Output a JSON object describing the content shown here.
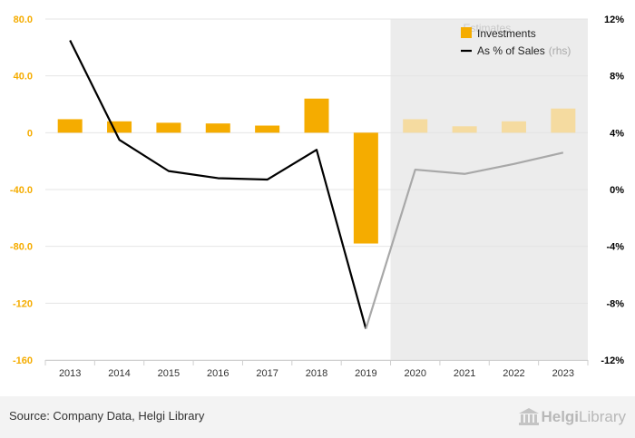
{
  "chart_data": {
    "type": "bar+line",
    "categories": [
      "2013",
      "2014",
      "2015",
      "2016",
      "2017",
      "2018",
      "2019",
      "2020",
      "2021",
      "2022",
      "2023"
    ],
    "series": [
      {
        "name": "Investments",
        "kind": "bar",
        "axis": "left",
        "values": [
          9.5,
          8.0,
          7.0,
          6.5,
          5.0,
          24.0,
          -78.0,
          9.5,
          4.5,
          8.0,
          17.0
        ]
      },
      {
        "name": "As % of Sales",
        "suffix": "(rhs)",
        "kind": "line",
        "axis": "right",
        "values": [
          10.5,
          3.5,
          1.3,
          0.8,
          0.7,
          2.8,
          -9.8,
          1.4,
          1.1,
          1.8,
          2.6
        ]
      }
    ],
    "estimate_start_index": 7,
    "estimates_label": "Estimates",
    "left_axis": {
      "min": -160,
      "max": 80,
      "ticks": [
        80,
        40,
        0,
        -40,
        -80,
        -120,
        -160
      ],
      "tick_labels": [
        "80.0",
        "40.0",
        "0",
        "-40.0",
        "-80.0",
        "-120",
        "-160"
      ]
    },
    "right_axis": {
      "min": -12,
      "max": 12,
      "ticks": [
        12,
        8,
        4,
        0,
        -4,
        -8,
        -12
      ],
      "tick_labels": [
        "12%",
        "8%",
        "4%",
        "0%",
        "-4%",
        "-8%",
        "-12%"
      ]
    },
    "legend_position": "top-right"
  },
  "colors": {
    "bar_actual": "#f5ac00",
    "bar_estimate": "#f5dba0",
    "line_actual": "#000000",
    "line_estimate": "#a8a8a8",
    "estimate_band": "#ececec",
    "left_tick": "#f5ac00",
    "right_tick": "#000000",
    "grid": "#e4e4e4"
  },
  "footer": {
    "source": "Source: Company Data, Helgi Library",
    "logo_bold": "Helgi",
    "logo_light": "Library"
  }
}
